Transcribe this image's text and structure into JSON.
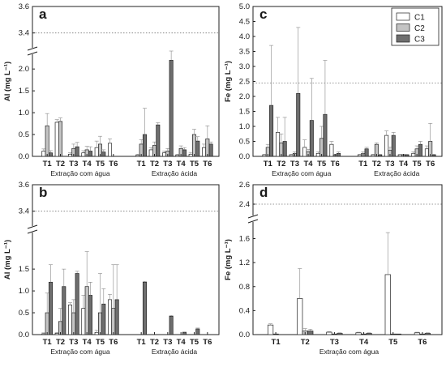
{
  "panels": [
    {
      "letter": "a",
      "ylabel": "Al (mg L⁻¹)",
      "ylim": [
        0,
        3.6
      ],
      "axis_break": [
        2.3,
        3.3
      ],
      "reference_line": 3.4,
      "ticks_low": [
        "0.0",
        "0.5",
        "1.0",
        "1.5",
        "2.0"
      ],
      "ticks_high": [
        "3.4",
        "3.6"
      ],
      "groups": [
        "Extração com água",
        "Extração ácida"
      ],
      "categories": [
        "T1",
        "T2",
        "T3",
        "T4",
        "T5",
        "T6"
      ],
      "legend": null
    },
    {
      "letter": "b",
      "ylabel": "Al (mg L⁻¹)",
      "ylim": [
        0,
        3.6
      ],
      "axis_break": [
        2.3,
        3.3
      ],
      "reference_line": 3.4,
      "ticks_low": [
        "0.0",
        "0.5",
        "1.0",
        "1.5"
      ],
      "ticks_high": [
        "3.4",
        "3.6"
      ],
      "groups": [
        "Extração com água",
        "Extração ácida"
      ],
      "categories": [
        "T1",
        "T2",
        "T3",
        "T4",
        "T5",
        "T6"
      ],
      "legend": null
    },
    {
      "letter": "c",
      "ylabel": "Fe (mg L⁻¹)",
      "ylim": [
        0,
        5.0
      ],
      "reference_line": 2.45,
      "ticks": [
        "0.0",
        "0.5",
        "1.0",
        "1.5",
        "2.0",
        "2.5",
        "3.0",
        "3.5",
        "4.0",
        "4.5",
        "5.0"
      ],
      "groups": [
        "Extração com água",
        "Extração ácida"
      ],
      "categories": [
        "T1",
        "T2",
        "T3",
        "T4",
        "T5",
        "T6"
      ],
      "legend": [
        "C1",
        "C2",
        "C3"
      ]
    },
    {
      "letter": "d",
      "ylabel": "Fe (mg L⁻¹)",
      "ylim": [
        0,
        2.6
      ],
      "axis_break": [
        1.85,
        2.3
      ],
      "reference_line": 2.4,
      "ticks_low": [
        "0.0",
        "0.4",
        "0.8",
        "1.2",
        "1.6"
      ],
      "ticks_high": [
        "2.4",
        "2.6"
      ],
      "groups": [
        "Extração com água"
      ],
      "categories": [
        "T1",
        "T2",
        "T3",
        "T4",
        "T5",
        "T6"
      ],
      "legend": null
    }
  ],
  "series_colors": {
    "C1": "#ffffff",
    "C2": "#c4c4c4",
    "C3": "#6e6e6e"
  },
  "chart_data": [
    {
      "type": "bar",
      "panel": "a",
      "ylabel": "Al (mg L⁻¹)",
      "ylim": [
        0,
        3.6
      ],
      "groups": [
        "Extração com água",
        "Extração ácida"
      ],
      "categories": [
        "T1",
        "T2",
        "T3",
        "T4",
        "T5",
        "T6"
      ],
      "series": [
        {
          "name": "C1",
          "water": [
            0.12,
            0.78,
            0.05,
            0.08,
            0.2,
            0.3
          ],
          "acid": [
            0.03,
            0.15,
            0.08,
            0.03,
            0.05,
            0.2
          ],
          "water_err": [
            0.05,
            0.06,
            0.03,
            0.05,
            0.15,
            0.1
          ],
          "acid_err": [
            0.02,
            0.05,
            0.04,
            0.02,
            0.04,
            0.08
          ]
        },
        {
          "name": "C2",
          "water": [
            0.7,
            0.8,
            0.18,
            0.15,
            0.28,
            0.0
          ],
          "acid": [
            0.28,
            0.25,
            0.12,
            0.18,
            0.5,
            0.4
          ],
          "water_err": [
            0.28,
            0.08,
            0.1,
            0.08,
            0.18,
            0.0
          ],
          "acid_err": [
            0.1,
            0.08,
            0.06,
            0.06,
            0.12,
            0.3
          ]
        },
        {
          "name": "C3",
          "water": [
            0.08,
            0.0,
            0.22,
            0.12,
            0.1,
            0.0
          ],
          "acid": [
            0.5,
            0.72,
            2.2,
            0.15,
            0.35,
            0.28
          ],
          "water_err": [
            0.05,
            0.0,
            0.1,
            0.1,
            0.05,
            0.0
          ],
          "acid_err": [
            0.6,
            0.05,
            0.15,
            0.05,
            0.1,
            0.05
          ]
        }
      ]
    },
    {
      "type": "bar",
      "panel": "b",
      "ylabel": "Al (mg L⁻¹)",
      "ylim": [
        0,
        3.6
      ],
      "groups": [
        "Extração com água",
        "Extração ácida"
      ],
      "categories": [
        "T1",
        "T2",
        "T3",
        "T4",
        "T5",
        "T6"
      ],
      "series": [
        {
          "name": "C1",
          "water": [
            0.02,
            0.03,
            0.68,
            0.6,
            0.05,
            0.8
          ],
          "acid": [
            0.0,
            0.0,
            0.0,
            0.0,
            0.0,
            0.0
          ],
          "water_err": [
            0.02,
            0.02,
            0.05,
            0.3,
            0.05,
            0.12
          ],
          "acid_err": [
            0,
            0,
            0,
            0,
            0,
            0
          ]
        },
        {
          "name": "C2",
          "water": [
            0.5,
            0.3,
            0.5,
            1.1,
            0.5,
            0.6
          ],
          "acid": [
            0.0,
            0.0,
            0.0,
            0.0,
            0.0,
            0.0
          ],
          "water_err": [
            0.45,
            0.3,
            0.3,
            0.8,
            0.9,
            1.0
          ],
          "acid_err": [
            0,
            0,
            0,
            0,
            0,
            0
          ]
        },
        {
          "name": "C3",
          "water": [
            1.2,
            1.1,
            1.4,
            0.9,
            0.7,
            0.8
          ],
          "acid": [
            1.2,
            0.0,
            0.42,
            0.05,
            0.13,
            0.0
          ],
          "water_err": [
            0.4,
            0.4,
            0.05,
            0.3,
            0.35,
            0.8
          ],
          "acid_err": [
            0.02,
            0,
            0.02,
            0.01,
            0.02,
            0
          ]
        }
      ]
    },
    {
      "type": "bar",
      "panel": "c",
      "ylabel": "Fe (mg L⁻¹)",
      "ylim": [
        0,
        5.0
      ],
      "groups": [
        "Extração com água",
        "Extração ácida"
      ],
      "categories": [
        "T1",
        "T2",
        "T3",
        "T4",
        "T5",
        "T6"
      ],
      "series": [
        {
          "name": "C1",
          "water": [
            0.05,
            0.8,
            0.05,
            0.3,
            0.1,
            0.4
          ],
          "acid": [
            0.05,
            0.05,
            0.7,
            0.05,
            0.1,
            0.25
          ],
          "water_err": [
            0.02,
            0.5,
            0.02,
            0.25,
            0.05,
            0.1
          ],
          "acid_err": [
            0.02,
            0.02,
            0.15,
            0.02,
            0.05,
            0.1
          ]
        },
        {
          "name": "C2",
          "water": [
            0.3,
            0.45,
            0.1,
            0.15,
            0.6,
            0.05
          ],
          "acid": [
            0.1,
            0.4,
            0.2,
            0.05,
            0.25,
            0.5
          ],
          "water_err": [
            0.1,
            0.3,
            0.05,
            0.08,
            0.4,
            0.02
          ],
          "acid_err": [
            0.05,
            0.05,
            0.1,
            0.02,
            0.1,
            0.6
          ]
        },
        {
          "name": "C3",
          "water": [
            1.7,
            0.5,
            2.1,
            1.2,
            1.4,
            0.1
          ],
          "acid": [
            0.25,
            0.05,
            0.7,
            0.05,
            0.4,
            0.05
          ],
          "water_err": [
            2.0,
            0.8,
            2.2,
            1.4,
            1.8,
            0.05
          ],
          "acid_err": [
            0.05,
            0.02,
            0.1,
            0.02,
            0.1,
            0.02
          ]
        }
      ]
    },
    {
      "type": "bar",
      "panel": "d",
      "ylabel": "Fe (mg L⁻¹)",
      "ylim": [
        0,
        2.6
      ],
      "groups": [
        "Extração com água"
      ],
      "categories": [
        "T1",
        "T2",
        "T3",
        "T4",
        "T5",
        "T6"
      ],
      "series": [
        {
          "name": "C1",
          "water": [
            0.16,
            0.6,
            0.04,
            0.03,
            1.0,
            0.03
          ],
          "water_err": [
            0.02,
            0.5,
            0.01,
            0.01,
            0.7,
            0.01
          ]
        },
        {
          "name": "C2",
          "water": [
            0.01,
            0.06,
            0.01,
            0.01,
            0.01,
            0.01
          ],
          "water_err": [
            0.0,
            0.04,
            0.0,
            0.0,
            0.0,
            0.0
          ]
        },
        {
          "name": "C3",
          "water": [
            0.0,
            0.06,
            0.02,
            0.02,
            0.01,
            0.02
          ],
          "water_err": [
            0.0,
            0.03,
            0.01,
            0.01,
            0.0,
            0.01
          ]
        }
      ]
    }
  ]
}
